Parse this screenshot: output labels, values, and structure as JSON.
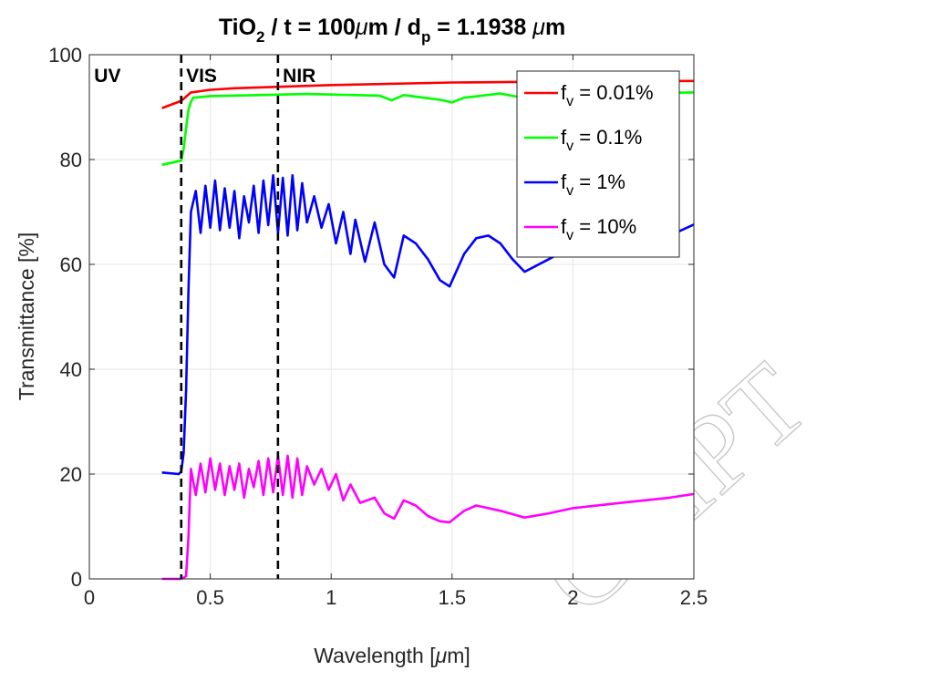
{
  "chart_data": {
    "type": "line",
    "title": {
      "main": "TiO",
      "sub1": "2",
      "mid": " / t = 100",
      "mu1": "μ",
      "mid2": "m / d",
      "sub2": "p",
      "tail": " = 1.1938 ",
      "mu2": "μ",
      "end": "m"
    },
    "xlabel": {
      "pre": "Wavelength [",
      "mu": "μ",
      "post": "m]"
    },
    "ylabel": "Transmittance [%]",
    "xlim": [
      0,
      2.5
    ],
    "ylim": [
      0,
      100
    ],
    "xticks": [
      0,
      0.5,
      1,
      1.5,
      2,
      2.5
    ],
    "xticklabels": [
      "0",
      "0.5",
      "1",
      "1.5",
      "2",
      "2.5"
    ],
    "yticks": [
      0,
      20,
      40,
      60,
      80,
      100
    ],
    "yticklabels": [
      "0",
      "20",
      "40",
      "60",
      "80",
      "100"
    ],
    "grid": true,
    "legend_position": "top-right",
    "region_lines": [
      0.38,
      0.78
    ],
    "region_labels": [
      {
        "text": "UV",
        "x": 0.02
      },
      {
        "text": "VIS",
        "x": 0.4
      },
      {
        "text": "NIR",
        "x": 0.8
      }
    ],
    "series": [
      {
        "name": "= 0.01%",
        "legend_f": "f",
        "legend_sub": "v",
        "color": "#ff0000",
        "x": [
          0.3,
          0.38,
          0.42,
          0.5,
          0.6,
          0.8,
          1.0,
          1.5,
          2.0,
          2.5
        ],
        "y": [
          89.8,
          91.2,
          92.8,
          93.3,
          93.6,
          93.9,
          94.2,
          94.7,
          94.9,
          95.0
        ]
      },
      {
        "name": "= 0.1%",
        "legend_f": "f",
        "legend_sub": "v",
        "color": "#00ff00",
        "x": [
          0.3,
          0.38,
          0.39,
          0.4,
          0.41,
          0.42,
          0.43,
          0.5,
          0.7,
          0.9,
          1.0,
          1.2,
          1.25,
          1.3,
          1.45,
          1.5,
          1.55,
          1.7,
          1.8,
          2.0,
          2.5
        ],
        "y": [
          79.0,
          79.8,
          82.0,
          86.0,
          89.5,
          91.0,
          91.8,
          92.1,
          92.3,
          92.5,
          92.4,
          92.2,
          91.3,
          92.3,
          91.4,
          90.9,
          91.8,
          92.6,
          91.7,
          92.5,
          92.8
        ]
      },
      {
        "name": "= 1%",
        "legend_f": "f",
        "legend_sub": "v",
        "color": "#0000ff",
        "x": [
          0.3,
          0.37,
          0.38,
          0.39,
          0.4,
          0.41,
          0.42,
          0.44,
          0.46,
          0.48,
          0.5,
          0.52,
          0.54,
          0.56,
          0.58,
          0.6,
          0.62,
          0.64,
          0.66,
          0.68,
          0.7,
          0.72,
          0.74,
          0.76,
          0.78,
          0.8,
          0.82,
          0.84,
          0.86,
          0.88,
          0.9,
          0.93,
          0.96,
          0.99,
          1.02,
          1.05,
          1.08,
          1.1,
          1.14,
          1.18,
          1.22,
          1.26,
          1.3,
          1.35,
          1.4,
          1.45,
          1.49,
          1.55,
          1.6,
          1.65,
          1.7,
          1.75,
          1.8,
          1.9,
          2.0,
          2.2,
          2.4,
          2.5
        ],
        "y": [
          20.3,
          20.0,
          20.5,
          24.0,
          36.0,
          55.0,
          70.0,
          74.0,
          66.0,
          75.0,
          67.0,
          76.0,
          66.5,
          74.5,
          67.0,
          74.0,
          65.0,
          73.0,
          68.0,
          75.0,
          66.0,
          76.0,
          67.5,
          77.0,
          66.0,
          76.5,
          65.5,
          77.0,
          66.5,
          75.5,
          68.0,
          73.0,
          67.0,
          71.5,
          64.0,
          70.0,
          62.0,
          68.5,
          60.5,
          68.0,
          60.0,
          57.5,
          65.5,
          64.0,
          61.0,
          57.0,
          55.8,
          62.0,
          65.0,
          65.5,
          64.0,
          61.0,
          58.6,
          61.0,
          63.5,
          64.5,
          65.5,
          67.6
        ]
      },
      {
        "name": "= 10%",
        "legend_f": "f",
        "legend_sub": "v",
        "color": "#ff00ff",
        "x": [
          0.3,
          0.38,
          0.4,
          0.41,
          0.42,
          0.44,
          0.46,
          0.48,
          0.5,
          0.52,
          0.54,
          0.56,
          0.58,
          0.6,
          0.62,
          0.64,
          0.66,
          0.68,
          0.7,
          0.72,
          0.74,
          0.76,
          0.78,
          0.8,
          0.82,
          0.84,
          0.86,
          0.88,
          0.9,
          0.93,
          0.96,
          0.99,
          1.02,
          1.05,
          1.08,
          1.12,
          1.18,
          1.22,
          1.26,
          1.3,
          1.35,
          1.4,
          1.45,
          1.49,
          1.55,
          1.6,
          1.7,
          1.8,
          1.9,
          2.0,
          2.2,
          2.4,
          2.5
        ],
        "y": [
          0.0,
          0.0,
          0.5,
          8.0,
          21.0,
          16.0,
          22.0,
          16.5,
          23.0,
          17.0,
          22.0,
          16.0,
          21.5,
          17.0,
          22.0,
          15.5,
          21.0,
          17.5,
          22.5,
          16.0,
          23.0,
          16.5,
          23.5,
          16.0,
          23.5,
          15.5,
          23.0,
          16.0,
          21.5,
          18.0,
          21.0,
          17.0,
          20.0,
          15.0,
          18.0,
          14.5,
          15.5,
          12.5,
          11.5,
          15.0,
          14.0,
          12.0,
          11.0,
          10.8,
          13.0,
          14.0,
          13.0,
          11.7,
          12.5,
          13.5,
          14.5,
          15.5,
          16.2
        ]
      }
    ]
  },
  "watermark": "CRIPT"
}
